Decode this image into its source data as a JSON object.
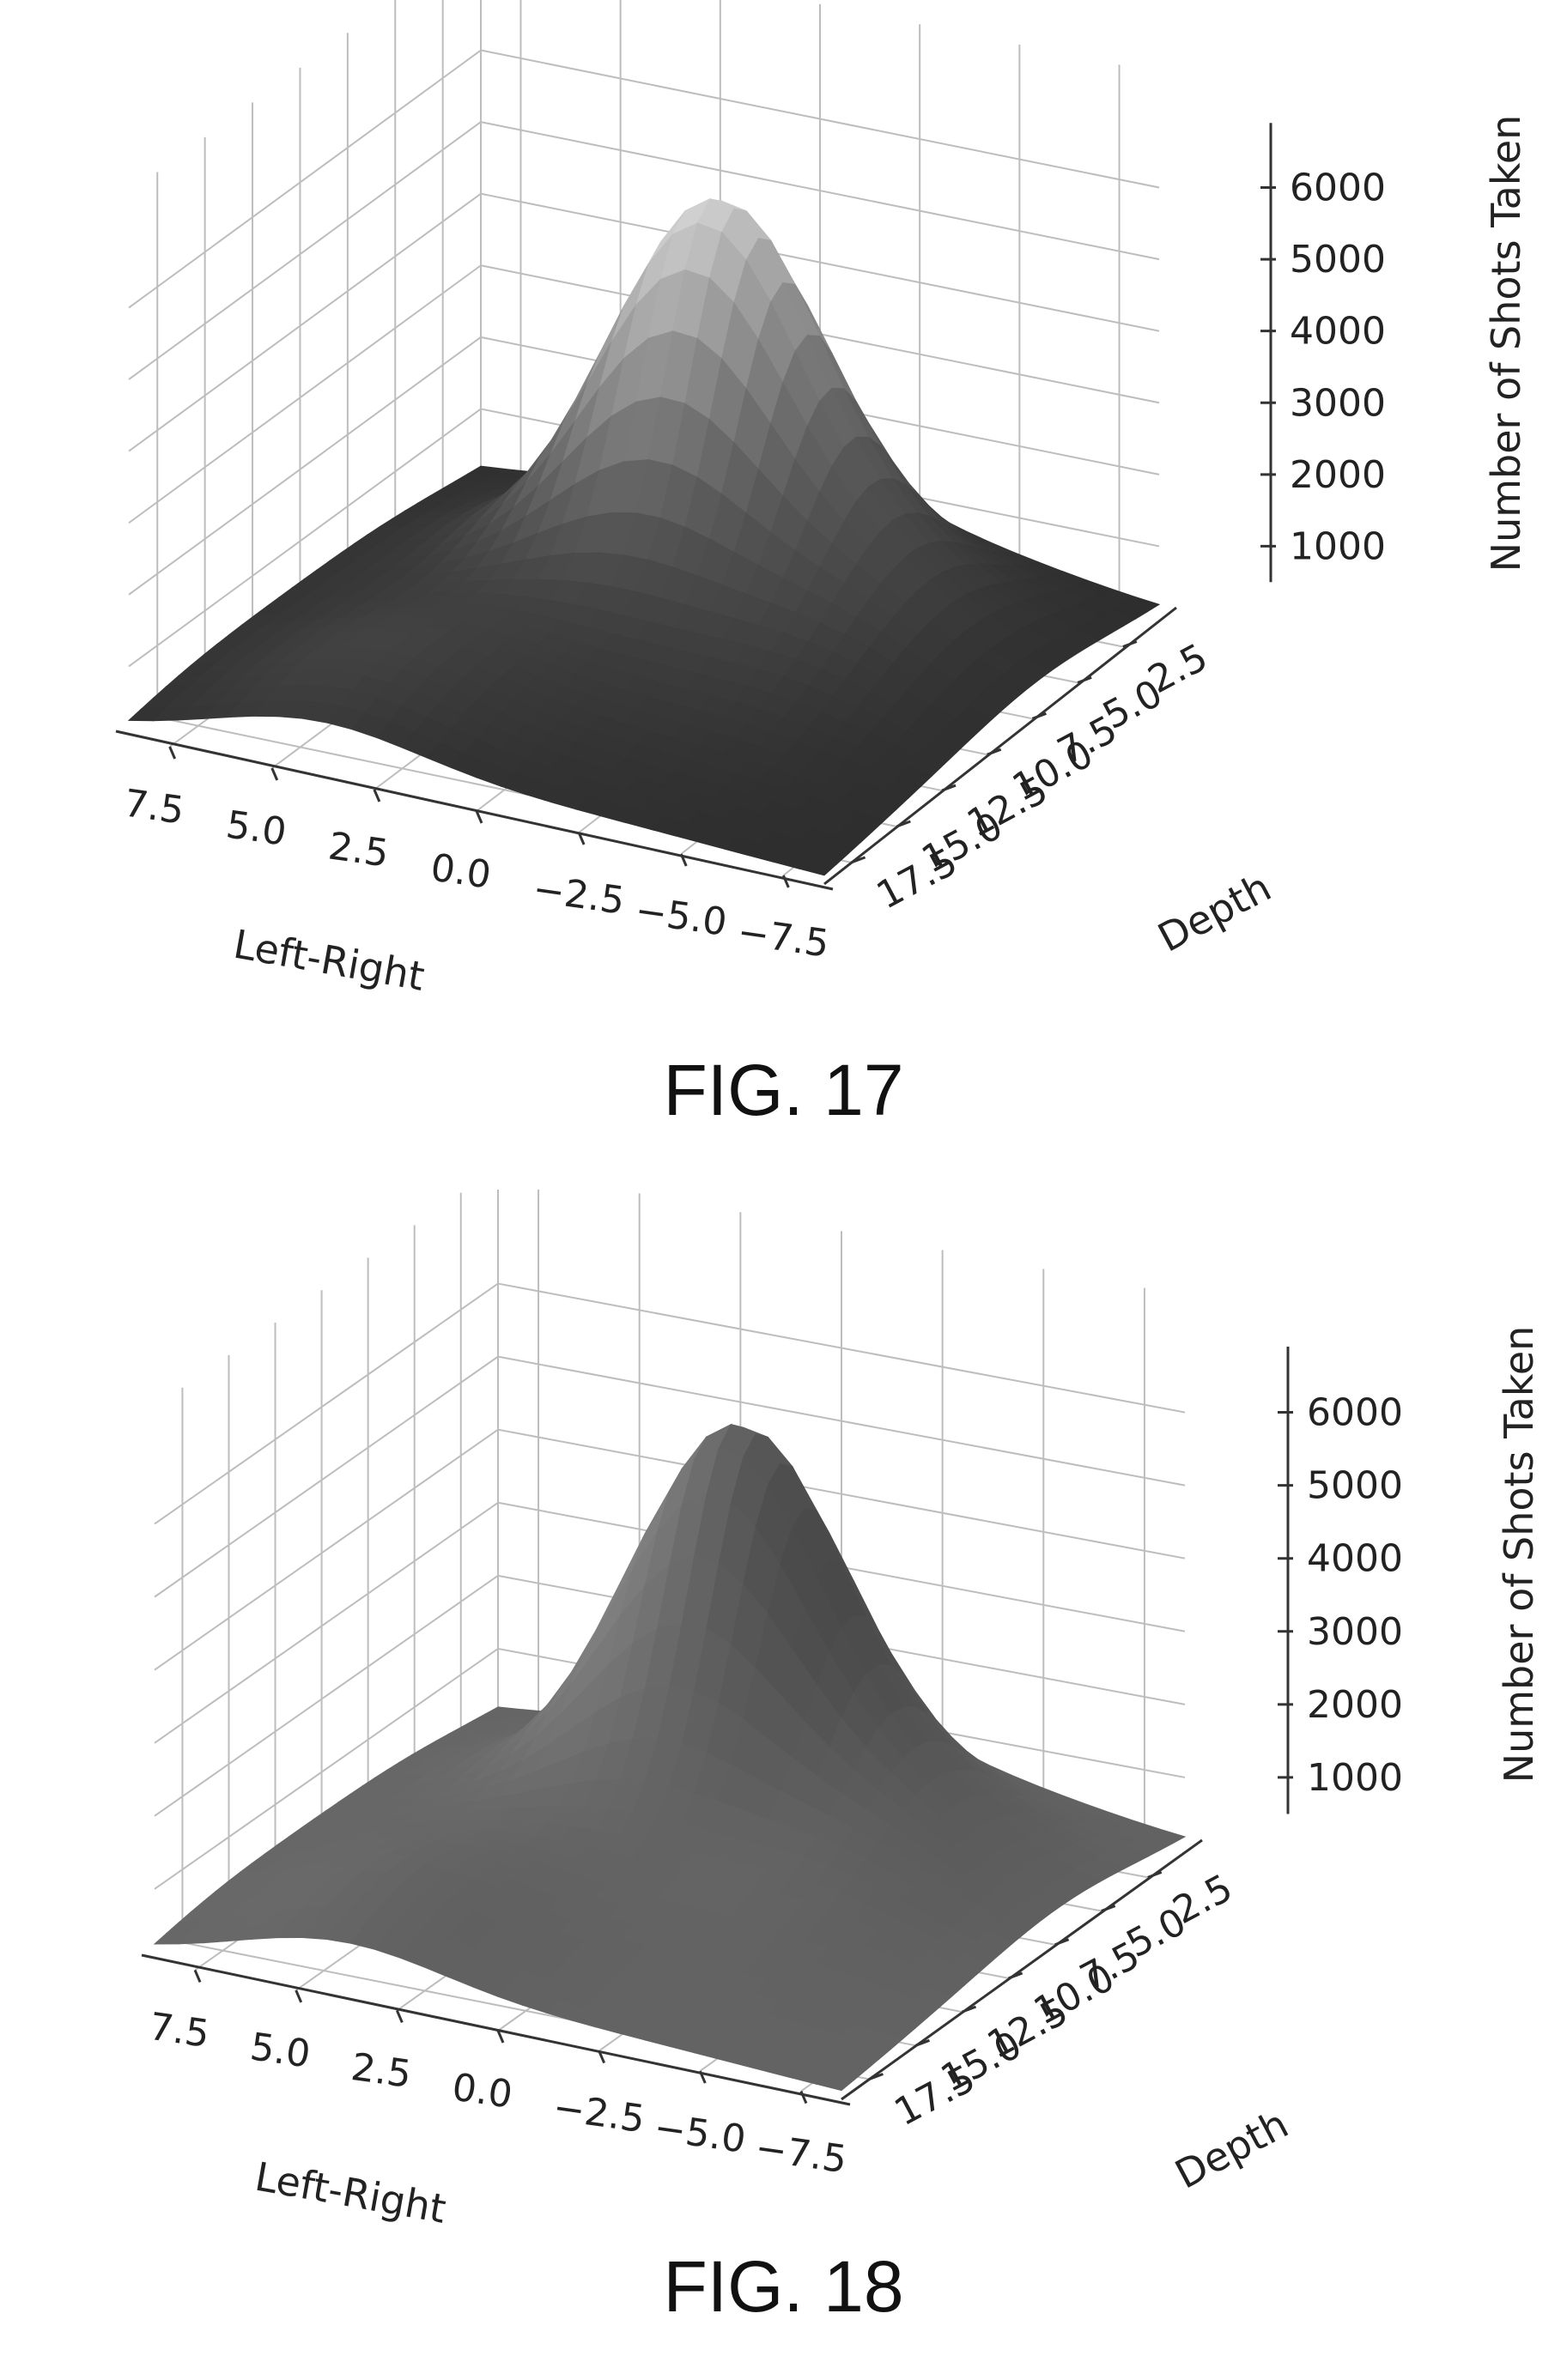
{
  "figures": [
    {
      "caption": "FIG. 17",
      "shading": "light-peak"
    },
    {
      "caption": "FIG. 18",
      "shading": "uniform"
    }
  ],
  "chart_data": [
    {
      "type": "surface",
      "xlabel": "Left-Right",
      "ylabel": "Depth",
      "zlabel": "Number of Shots Taken",
      "x_ticks": [
        "7.5",
        "5.0",
        "2.5",
        "0.0",
        "−2.5",
        "−5.0",
        "−7.5"
      ],
      "y_ticks": [
        "2.5",
        "5.0",
        "7.5",
        "10.0",
        "12.5",
        "15.0",
        "17.5"
      ],
      "z_ticks": [
        "1000",
        "2000",
        "3000",
        "4000",
        "5000",
        "6000"
      ],
      "xlim": [
        8.5,
        -8.5
      ],
      "ylim": [
        0.5,
        19
      ],
      "zlim": [
        0,
        6700
      ],
      "peak": {
        "x": 0.5,
        "y": 5.0,
        "z": 6300
      },
      "grid": true
    },
    {
      "type": "surface",
      "xlabel": "Left-Right",
      "ylabel": "Depth",
      "zlabel": "Number of Shots Taken",
      "x_ticks": [
        "7.5",
        "5.0",
        "2.5",
        "0.0",
        "−2.5",
        "−5.0",
        "−7.5"
      ],
      "y_ticks": [
        "2.5",
        "5.0",
        "7.5",
        "10.0",
        "12.5",
        "15.0",
        "17.5"
      ],
      "z_ticks": [
        "1000",
        "2000",
        "3000",
        "4000",
        "5000",
        "6000"
      ],
      "xlim": [
        8.5,
        -8.5
      ],
      "ylim": [
        0.5,
        19
      ],
      "zlim": [
        0,
        6700
      ],
      "peak": {
        "x": 0.5,
        "y": 5.0,
        "z": 6300
      },
      "grid": true
    }
  ]
}
